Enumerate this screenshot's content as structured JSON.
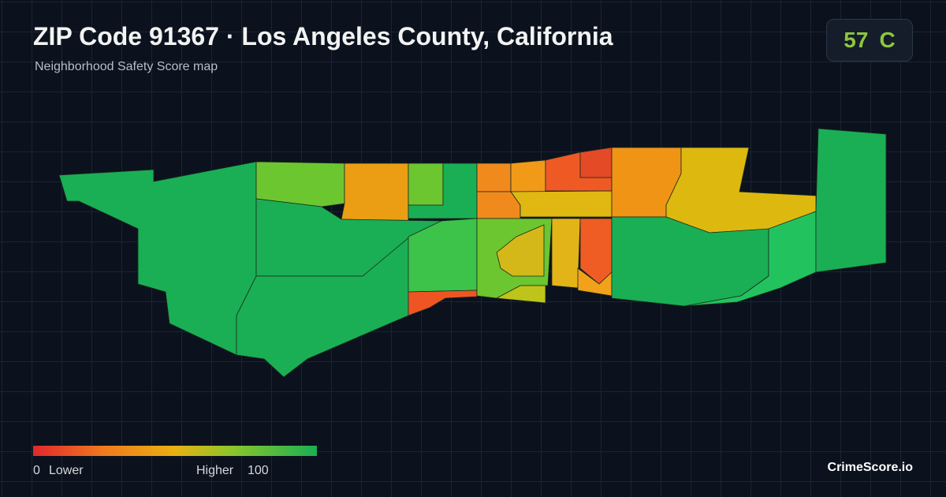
{
  "header": {
    "title": "ZIP Code 91367 · Los Angeles County, California",
    "subtitle": "Neighborhood Safety Score map"
  },
  "score": {
    "value": 57,
    "grade": "C"
  },
  "legend": {
    "min": 0,
    "min_label": "Lower",
    "max_label": "Higher",
    "max": 100
  },
  "brand": "CrimeScore.io"
}
